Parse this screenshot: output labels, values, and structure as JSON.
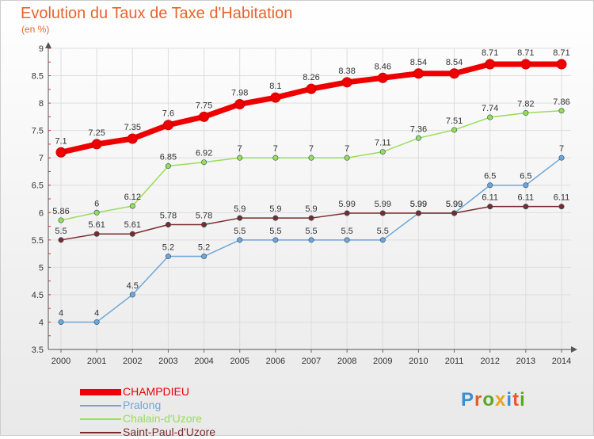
{
  "title": "Evolution du Taux de Taxe d'Habitation",
  "subtitle": "(en %)",
  "brand": {
    "text": "Proxiti",
    "letter_colors": [
      "#3a8fd1",
      "#e25c2b",
      "#5aa628",
      "#e8a51c",
      "#3a8fd1",
      "#e25c2b",
      "#5aa628"
    ]
  },
  "chart_data": {
    "type": "line",
    "title": "Evolution du Taux de Taxe d'Habitation",
    "ylabel": "(en %)",
    "xlabel": "",
    "x": [
      "2000",
      "2001",
      "2002",
      "2003",
      "2004",
      "2005",
      "2006",
      "2007",
      "2008",
      "2009",
      "2010",
      "2011",
      "2012",
      "2013",
      "2014"
    ],
    "ylim": [
      3.5,
      9
    ],
    "yticks": [
      "3.5",
      "4",
      "4.5",
      "5",
      "5.5",
      "6",
      "6.5",
      "7",
      "7.5",
      "8",
      "8.5",
      "9"
    ],
    "grid": true,
    "legend_position": "bottom-left",
    "series": [
      {
        "name": "CHAMPDIEU",
        "color": "#ee0000",
        "emphasis": true,
        "values": [
          7.1,
          7.25,
          7.35,
          7.6,
          7.75,
          7.98,
          8.1,
          8.26,
          8.38,
          8.46,
          8.54,
          8.54,
          8.71,
          8.71,
          8.71
        ],
        "labels": [
          "7.1",
          "7.25",
          "7.35",
          "7.6",
          "7.75",
          "7.98",
          "8.1",
          "8.26",
          "8.38",
          "8.46",
          "8.54",
          "8.54",
          "8.71",
          "8.71",
          "8.71"
        ]
      },
      {
        "name": "Pralong",
        "color": "#6fa6d6",
        "values": [
          4,
          4,
          4.5,
          5.2,
          5.2,
          5.5,
          5.5,
          5.5,
          5.5,
          5.5,
          5.99,
          5.99,
          6.5,
          6.5,
          7
        ],
        "labels": [
          "4",
          "4",
          "4.5",
          "5.2",
          "5.2",
          "5.5",
          "5.5",
          "5.5",
          "5.5",
          "5.5",
          "5.99",
          "5.99",
          "6.5",
          "6.5",
          "7"
        ]
      },
      {
        "name": "Chalain-d'Uzore",
        "color": "#99dd55",
        "values": [
          5.86,
          6,
          6.12,
          6.85,
          6.92,
          7,
          7,
          7,
          7,
          7.11,
          7.36,
          7.51,
          7.74,
          7.82,
          7.86
        ],
        "labels": [
          "5.86",
          "6",
          "6.12",
          "6.85",
          "6.92",
          "7",
          "7",
          "7",
          "7",
          "7.11",
          "7.36",
          "7.51",
          "7.74",
          "7.82",
          "7.86"
        ]
      },
      {
        "name": "Saint-Paul-d'Uzore",
        "color": "#7a2c2c",
        "values": [
          5.5,
          5.61,
          5.61,
          5.78,
          5.78,
          5.9,
          5.9,
          5.9,
          5.99,
          5.99,
          5.99,
          5.99,
          6.11,
          6.11,
          6.11
        ],
        "labels": [
          "5.5",
          "5.61",
          "5.61",
          "5.78",
          "5.78",
          "5.9",
          "5.9",
          "5.9",
          "5.99",
          "5.99",
          "5.99",
          "5.99",
          "6.11",
          "6.11",
          "6.11"
        ]
      }
    ]
  }
}
